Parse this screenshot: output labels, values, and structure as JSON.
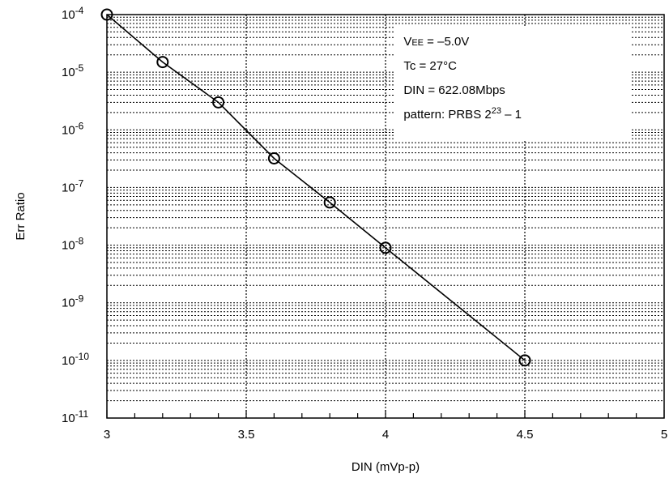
{
  "chart_data": {
    "type": "line",
    "title": "",
    "xlabel": "DIN (mVp-p)",
    "ylabel": "Err Ratio",
    "xlim": [
      3,
      5
    ],
    "ylim_exponent": [
      -11,
      -4
    ],
    "y_scale": "log",
    "x_ticks": [
      "3",
      "3.5",
      "4",
      "4.5",
      "5"
    ],
    "y_tick_base": "10",
    "y_tick_exponents": [
      "-4",
      "-5",
      "-6",
      "-7",
      "-8",
      "-9",
      "-10",
      "-11"
    ],
    "grid": true,
    "series": [
      {
        "x": [
          3.0,
          3.2,
          3.4,
          3.6,
          3.8,
          4.0,
          4.5
        ],
        "y": [
          0.0001,
          1.5e-05,
          3e-06,
          3.2e-07,
          5.5e-08,
          9e-09,
          1e-10
        ],
        "marker": "circle",
        "color": "#000000"
      }
    ],
    "annotation": {
      "placement": "top-right",
      "vee_prefix": "V",
      "vee_sub": "EE",
      "vee_value": " = –5.0V",
      "tc": "Tc = 27°C",
      "din": "DIN = 622.08Mbps",
      "pattern_prefix": "pattern: PRBS 2",
      "pattern_sup": "23",
      "pattern_suffix": " – 1"
    }
  }
}
